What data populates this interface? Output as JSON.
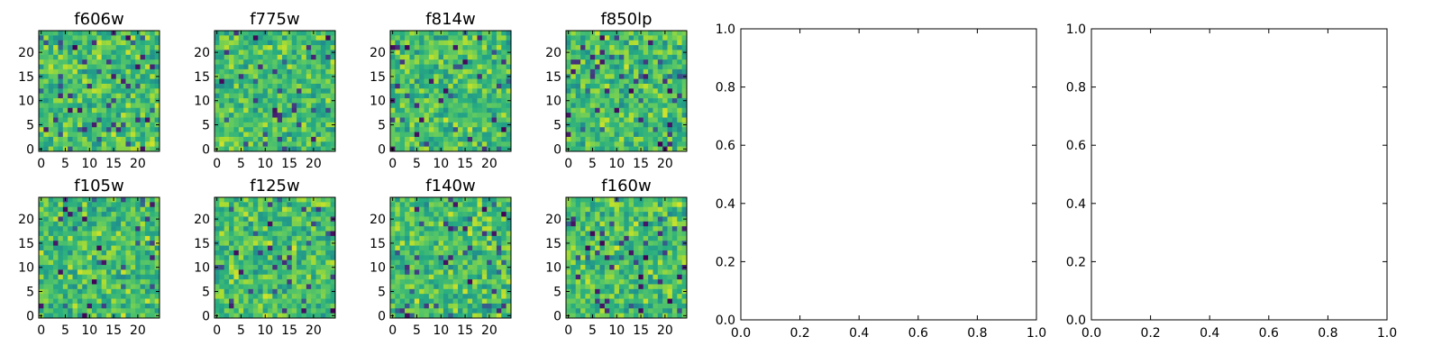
{
  "chart_data": {
    "type": "heatmap",
    "colormap": "viridis",
    "grid": false,
    "heatmap_panels": [
      {
        "title": "f606w",
        "xticks": [
          "0",
          "5",
          "10",
          "15",
          "20"
        ],
        "yticks": [
          "0",
          "5",
          "10",
          "15",
          "20"
        ],
        "size": 25
      },
      {
        "title": "f775w",
        "xticks": [
          "0",
          "5",
          "10",
          "15",
          "20"
        ],
        "yticks": [
          "0",
          "5",
          "10",
          "15",
          "20"
        ],
        "size": 25
      },
      {
        "title": "f814w",
        "xticks": [
          "0",
          "5",
          "10",
          "15",
          "20"
        ],
        "yticks": [
          "0",
          "5",
          "10",
          "15",
          "20"
        ],
        "size": 25
      },
      {
        "title": "f850lp",
        "xticks": [
          "0",
          "5",
          "10",
          "15",
          "20"
        ],
        "yticks": [
          "0",
          "5",
          "10",
          "15",
          "20"
        ],
        "size": 25
      },
      {
        "title": "f105w",
        "xticks": [
          "0",
          "5",
          "10",
          "15",
          "20"
        ],
        "yticks": [
          "0",
          "5",
          "10",
          "15",
          "20"
        ],
        "size": 25
      },
      {
        "title": "f125w",
        "xticks": [
          "0",
          "5",
          "10",
          "15",
          "20"
        ],
        "yticks": [
          "0",
          "5",
          "10",
          "15",
          "20"
        ],
        "size": 25
      },
      {
        "title": "f140w",
        "xticks": [
          "0",
          "5",
          "10",
          "15",
          "20"
        ],
        "yticks": [
          "0",
          "5",
          "10",
          "15",
          "20"
        ],
        "size": 25
      },
      {
        "title": "f160w",
        "xticks": [
          "0",
          "5",
          "10",
          "15",
          "20"
        ],
        "yticks": [
          "0",
          "5",
          "10",
          "15",
          "20"
        ],
        "size": 25
      }
    ],
    "empty_panels": [
      {
        "xticks": [
          "0.0",
          "0.2",
          "0.4",
          "0.6",
          "0.8",
          "1.0"
        ],
        "yticks": [
          "0.0",
          "0.2",
          "0.4",
          "0.6",
          "0.8",
          "1.0"
        ],
        "xlim": [
          0,
          1
        ],
        "ylim": [
          0,
          1
        ]
      },
      {
        "xticks": [
          "0.0",
          "0.2",
          "0.4",
          "0.6",
          "0.8",
          "1.0"
        ],
        "yticks": [
          "0.0",
          "0.2",
          "0.4",
          "0.6",
          "0.8",
          "1.0"
        ],
        "xlim": [
          0,
          1
        ],
        "ylim": [
          0,
          1
        ]
      }
    ]
  }
}
